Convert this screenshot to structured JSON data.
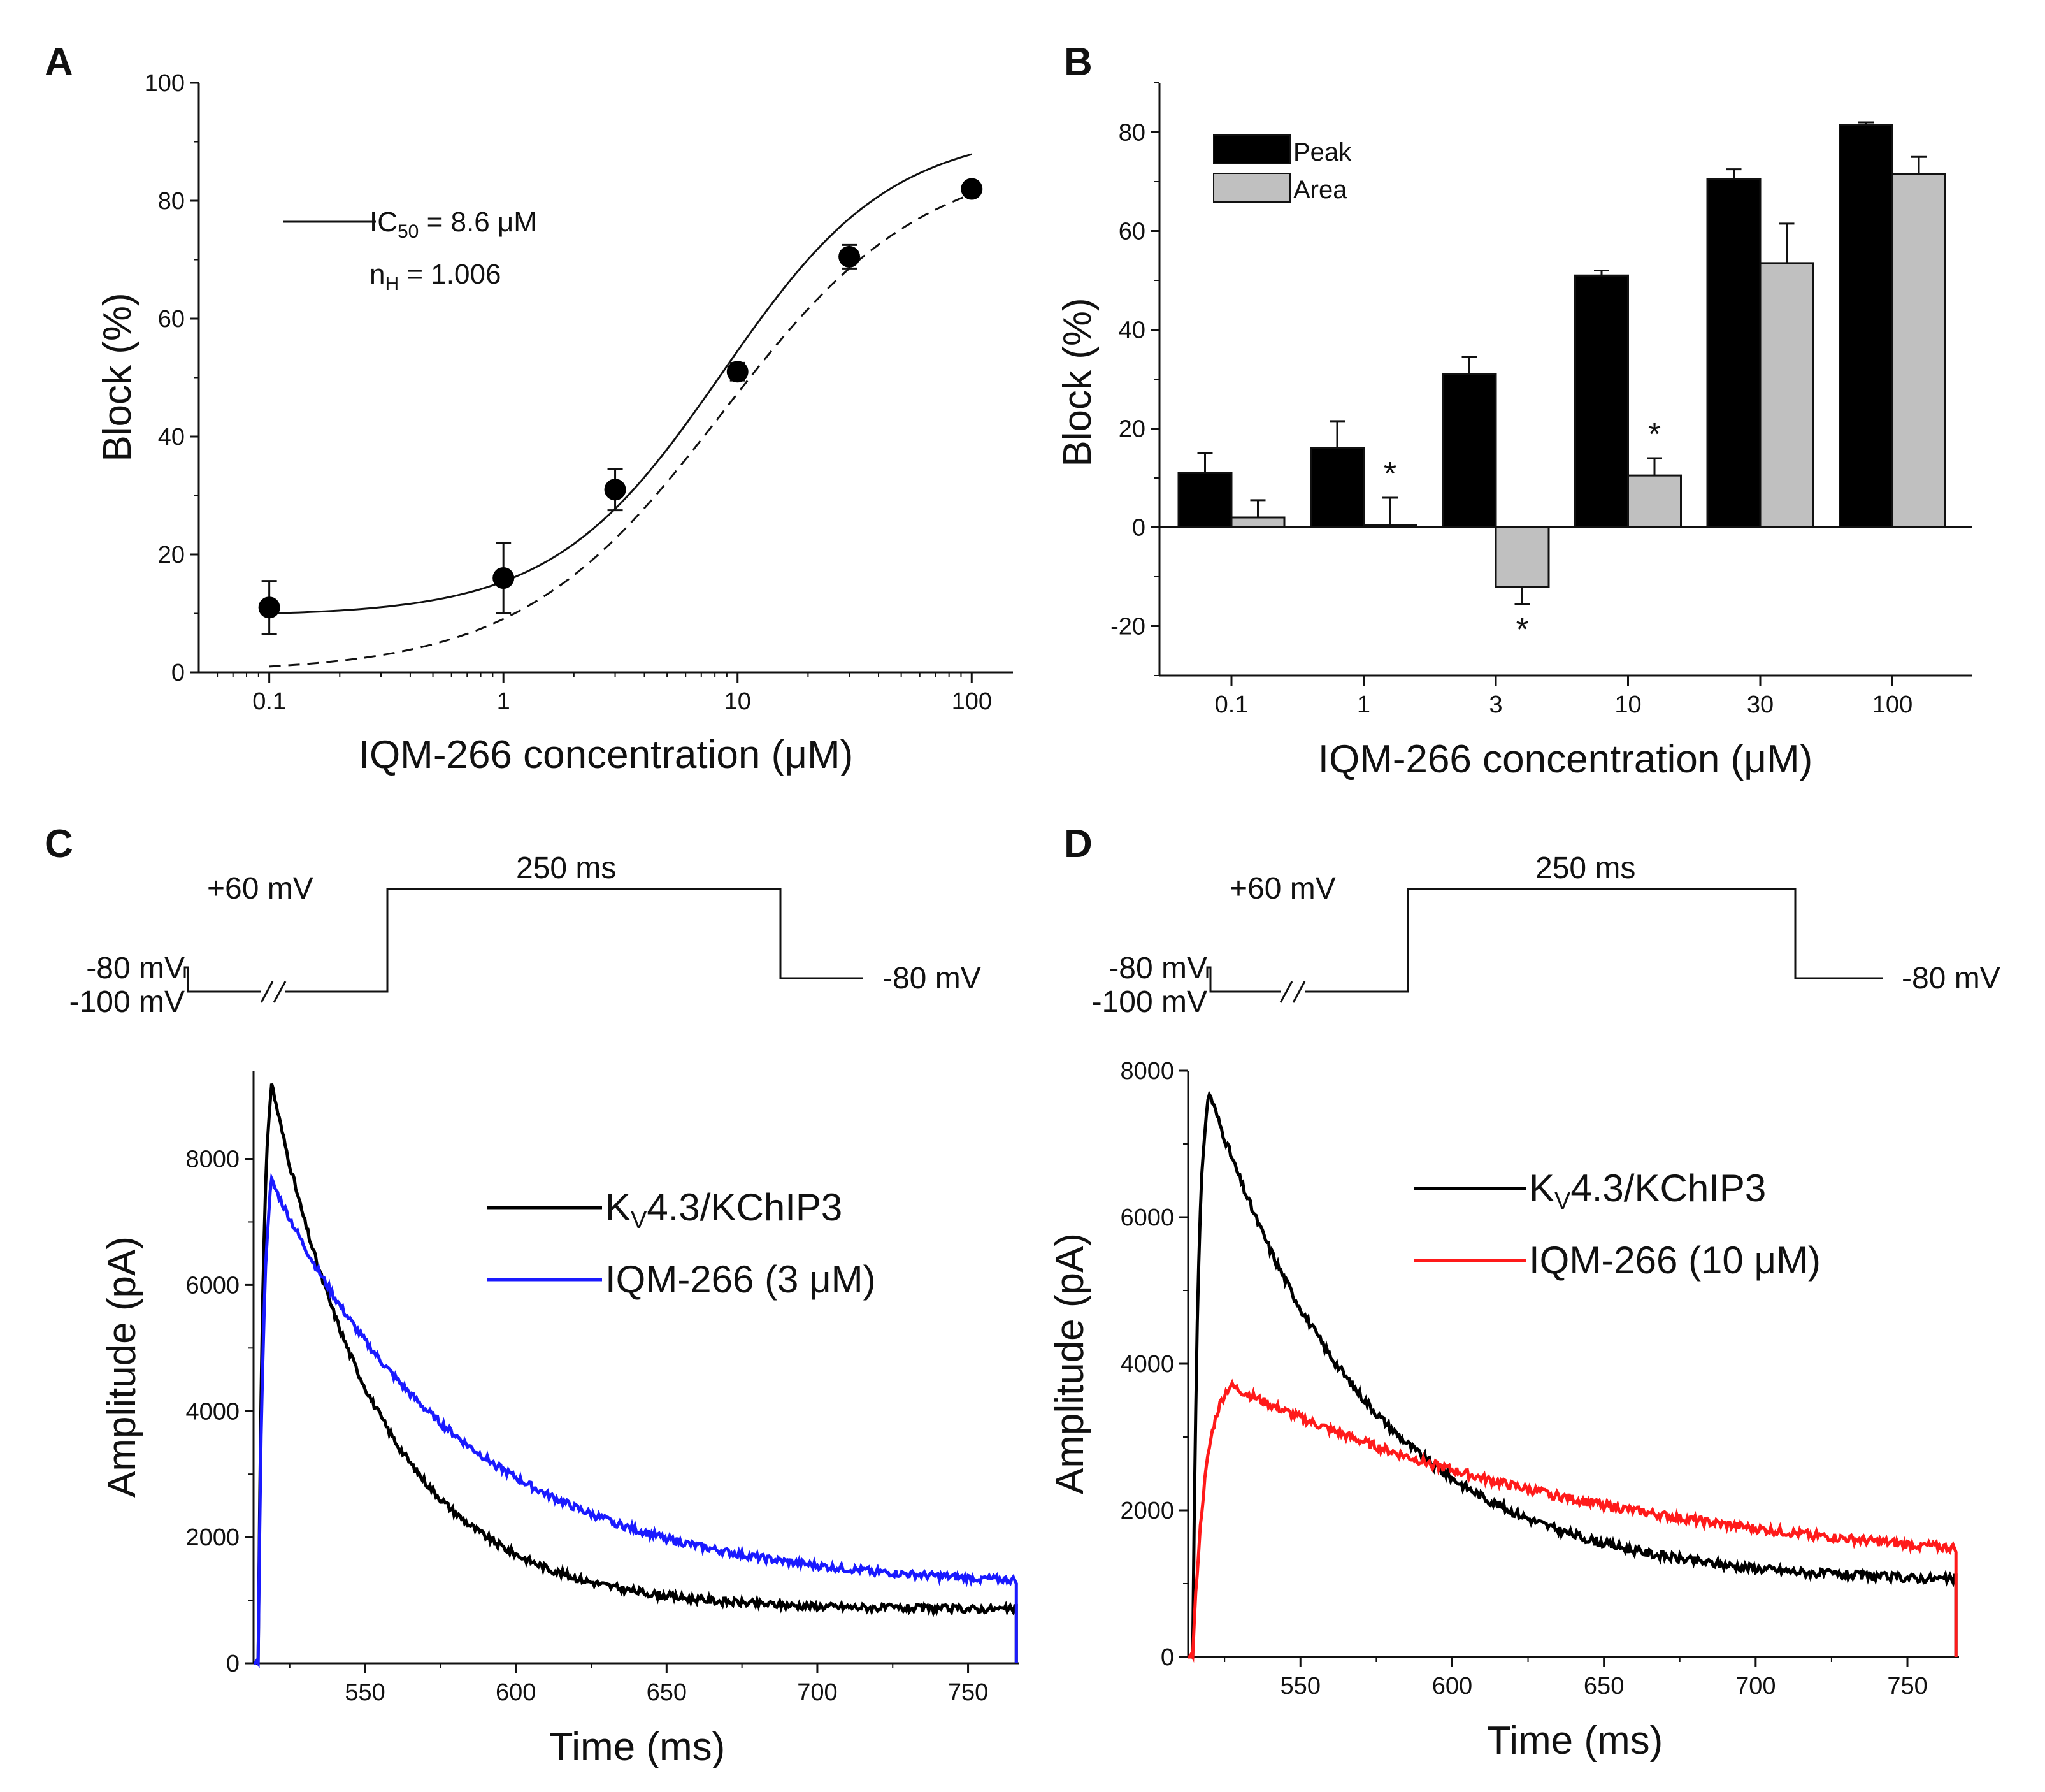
{
  "panels": {
    "A": {
      "label": "A",
      "ylabel": "Block (%)",
      "xlabel": "IQM-266 concentration (μM)",
      "ic50_text": "IC50 = 8.6 μM",
      "ic50_main": "IC",
      "ic50_sub": "50",
      "ic50_rest": " = 8.6 μM",
      "nh_main": "n",
      "nh_sub": "H",
      "nh_rest": " = 1.006",
      "xtick_labels": [
        "0.1",
        "1",
        "10",
        "100"
      ],
      "ytick_labels": [
        "0",
        "20",
        "40",
        "60",
        "80",
        "100"
      ]
    },
    "B": {
      "label": "B",
      "ylabel": "Block (%)",
      "xlabel": "IQM-266 concentration (μM)",
      "legend": [
        "Peak",
        "Area"
      ],
      "xtick_labels": [
        "0.1",
        "1",
        "3",
        "10",
        "30",
        "100"
      ],
      "ytick_labels": [
        "-20",
        "0",
        "20",
        "40",
        "60",
        "80"
      ],
      "star": "*"
    },
    "C": {
      "label": "C",
      "protocol": {
        "hold": "-80 mV",
        "pre": "-100 mV",
        "step": "+60 mV",
        "duration": "250 ms",
        "after": "-80 mV"
      },
      "ylabel": "Amplitude (pA)",
      "xlabel": "Time (ms)",
      "legend_control_main": "K",
      "legend_control_sub": "V",
      "legend_control_rest": "4.3/KChIP3",
      "legend_drug": "IQM-266 (3 μM)",
      "xtick_labels": [
        "550",
        "600",
        "650",
        "700",
        "750"
      ],
      "ytick_labels": [
        "0",
        "2000",
        "4000",
        "6000",
        "8000"
      ]
    },
    "D": {
      "label": "D",
      "protocol": {
        "hold": "-80 mV",
        "pre": "-100 mV",
        "step": "+60 mV",
        "duration": "250 ms",
        "after": "-80 mV"
      },
      "ylabel": "Amplitude (pA)",
      "xlabel": "Time (ms)",
      "legend_control_main": "K",
      "legend_control_sub": "V",
      "legend_control_rest": "4.3/KChIP3",
      "legend_drug": "IQM-266 (10 μM)",
      "xtick_labels": [
        "550",
        "600",
        "650",
        "700",
        "750"
      ],
      "ytick_labels": [
        "0",
        "2000",
        "4000",
        "6000",
        "8000"
      ]
    }
  },
  "colors": {
    "control": "#000000",
    "drug_C": "#1a1aff",
    "drug_D": "#ff1a1a",
    "peak_bar": "#000000",
    "area_bar": "#c0c0c0"
  },
  "chart_data": [
    {
      "panel": "A",
      "type": "scatter",
      "title": "",
      "xlabel": "IQM-266 concentration (μM)",
      "ylabel": "Block (%)",
      "xscale": "log",
      "xlim": [
        0.05,
        150
      ],
      "ylim": [
        0,
        100
      ],
      "x": [
        0.1,
        1,
        3,
        10,
        30,
        100
      ],
      "y": [
        11,
        16,
        31,
        51,
        70.5,
        82
      ],
      "yerr": [
        4.5,
        6,
        3.5,
        1.5,
        2,
        1
      ],
      "fit": {
        "ic50": 8.6,
        "nH": 1.006,
        "line": "solid",
        "dashed_line": true
      }
    },
    {
      "panel": "B",
      "type": "bar",
      "xlabel": "IQM-266 concentration (μM)",
      "ylabel": "Block (%)",
      "categories": [
        "0.1",
        "1",
        "3",
        "10",
        "30",
        "100"
      ],
      "ylim": [
        -30,
        90
      ],
      "series": [
        {
          "name": "Peak",
          "values": [
            11,
            16,
            31,
            51,
            70.5,
            81.5
          ],
          "err": [
            4,
            5.5,
            3.5,
            1,
            2,
            0.5
          ]
        },
        {
          "name": "Area",
          "values": [
            2,
            0.5,
            -12,
            10.5,
            53.5,
            71.5
          ],
          "err": [
            3.5,
            5.5,
            3.5,
            3.5,
            8,
            3.5
          ]
        }
      ],
      "significance": [
        false,
        true,
        true,
        true,
        false,
        false
      ]
    },
    {
      "panel": "C",
      "type": "line",
      "xlabel": "Time (ms)",
      "ylabel": "Amplitude (pA)",
      "xlim": [
        513,
        767
      ],
      "ylim": [
        0,
        9400
      ],
      "series": [
        {
          "name": "KV4.3/KChIP3",
          "peak_time": 519,
          "peak": 9200,
          "steady": 850,
          "tau": 36
        },
        {
          "name": "IQM-266 (3 μM)",
          "peak_time": 519,
          "peak": 7650,
          "steady": 1200,
          "tau": 62
        }
      ]
    },
    {
      "panel": "D",
      "type": "line",
      "xlabel": "Time (ms)",
      "ylabel": "Amplitude (pA)",
      "xlim": [
        513,
        767
      ],
      "ylim": [
        0,
        8000
      ],
      "series": [
        {
          "name": "KV4.3/KChIP3",
          "peak_time": 520,
          "peak": 7700,
          "steady": 1000,
          "tau": 52
        },
        {
          "name": "IQM-266 (10 μM)",
          "peak_time": 527,
          "peak": 3700,
          "steady": 1100,
          "tau": 125
        }
      ]
    }
  ]
}
